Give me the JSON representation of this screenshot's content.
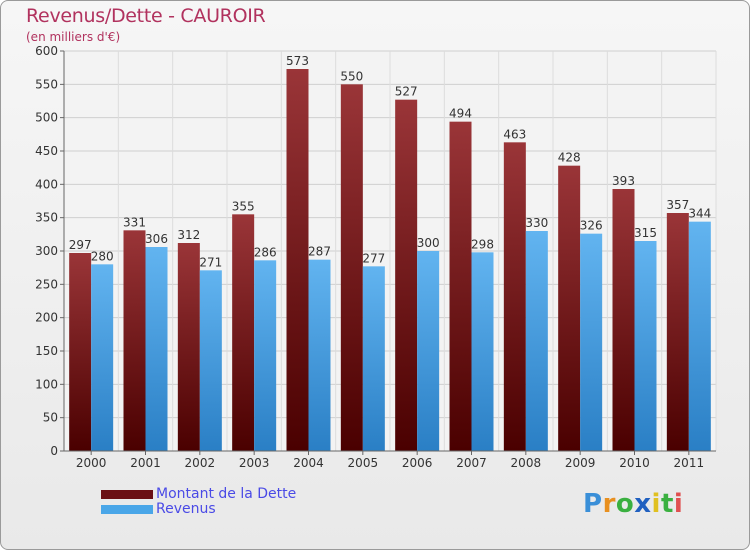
{
  "title": "Revenus/Dette - CAUROIR",
  "subtitle": "(en milliers d'€)",
  "colors": {
    "dette_dark": "#4a0000",
    "dette_light": "#9a3538",
    "revenus_dark": "#2a7fc5",
    "revenus_light": "#62b4f0",
    "title": "#b1325e",
    "legend_text": "#4a4ae6"
  },
  "legend": [
    {
      "label": "Montant de la Dette",
      "color": "#6b1014"
    },
    {
      "label": "Revenus",
      "color": "#4aa6e8"
    }
  ],
  "logo": {
    "letters": [
      "P",
      "r",
      "o",
      "x",
      "i",
      "t",
      "i"
    ],
    "colors": [
      "#3a8fd8",
      "#e89020",
      "#3ab040",
      "#2060c0",
      "#e0c020",
      "#3ab040",
      "#e05050"
    ]
  },
  "chart_data": {
    "type": "bar",
    "title": "Revenus/Dette - CAUROIR",
    "ylabel": "(en milliers d'€)",
    "categories": [
      "2000",
      "2001",
      "2002",
      "2003",
      "2004",
      "2005",
      "2006",
      "2007",
      "2008",
      "2009",
      "2010",
      "2011"
    ],
    "series": [
      {
        "name": "Montant de la Dette",
        "values": [
          297,
          331,
          312,
          355,
          573,
          550,
          527,
          494,
          463,
          428,
          393,
          357
        ]
      },
      {
        "name": "Revenus",
        "values": [
          280,
          306,
          271,
          286,
          287,
          277,
          300,
          298,
          330,
          326,
          315,
          344
        ]
      }
    ],
    "ylim": [
      0,
      600
    ],
    "yticks": [
      0,
      50,
      100,
      150,
      200,
      250,
      300,
      350,
      400,
      450,
      500,
      550,
      600
    ],
    "grid": true,
    "legend_position": "bottom-left"
  }
}
